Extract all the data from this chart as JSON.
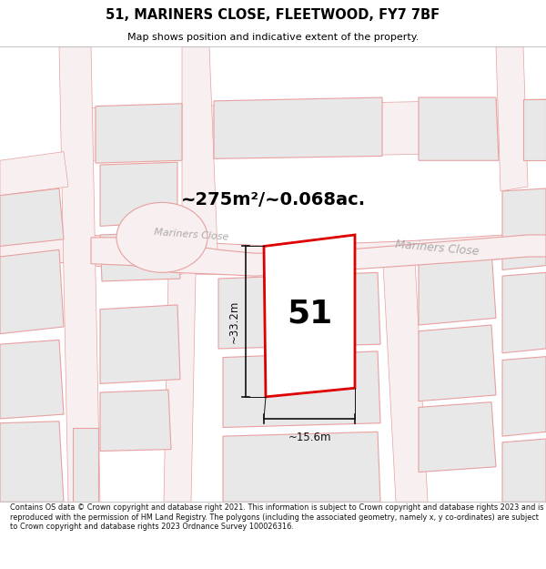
{
  "title": "51, MARINERS CLOSE, FLEETWOOD, FY7 7BF",
  "subtitle": "Map shows position and indicative extent of the property.",
  "footer": "Contains OS data © Crown copyright and database right 2021. This information is subject to Crown copyright and database rights 2023 and is reproduced with the permission of HM Land Registry. The polygons (including the associated geometry, namely x, y co-ordinates) are subject to Crown copyright and database rights 2023 Ordnance Survey 100026316.",
  "area_text": "~275m²/~0.068ac.",
  "label": "51",
  "dim_width": "~15.6m",
  "dim_height": "~33.2m",
  "road_label_1": "Mariners Close",
  "road_label_2": "Mariners Close",
  "map_bg": "#ffffff",
  "plot_fill": "#ffffff",
  "plot_edge": "#dd0000",
  "parcel_fill": "#e8e8e8",
  "parcel_edge": "#e8a0a0",
  "road_edge": "#e8a0a0",
  "road_fill": "#f8f0f0",
  "road_label_color": "#aaaaaa",
  "dim_color": "#111111",
  "title_color": "#000000",
  "label_color": "#000000",
  "area_color": "#000000"
}
